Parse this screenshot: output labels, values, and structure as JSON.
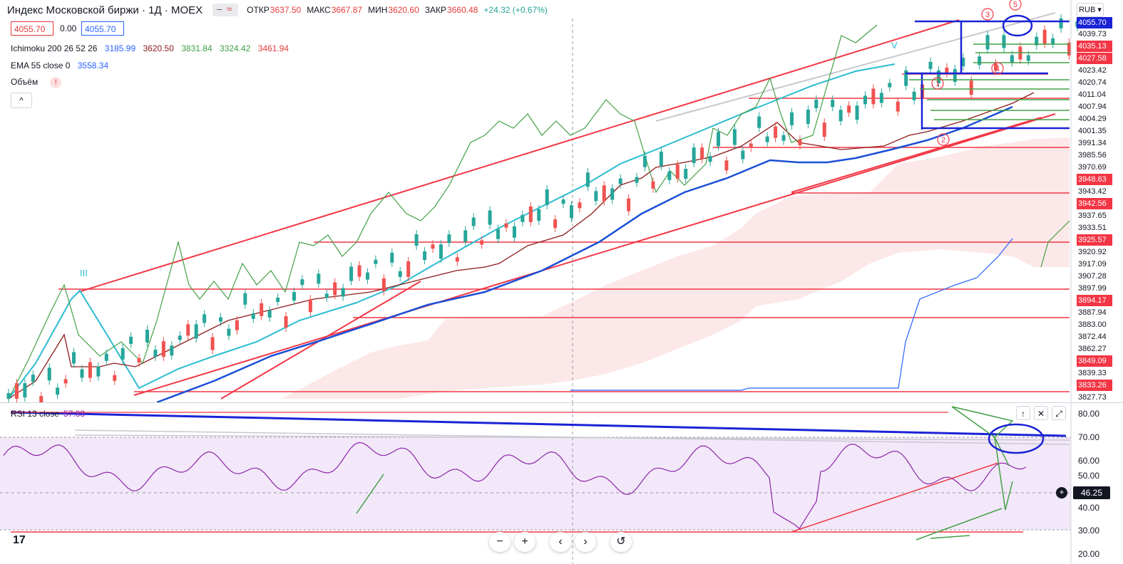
{
  "header": {
    "title": "Индекс Московской биржи · 1Д · MOEX",
    "open_label": "ОТКР",
    "open": "3637.50",
    "high_label": "МАКС",
    "high": "3667.87",
    "low_label": "МИН",
    "low": "3620.60",
    "close_label": "ЗАКР",
    "close": "3660.48",
    "change": "+24.32 (+0.67%)"
  },
  "price_boxes": {
    "bid": "4055.70",
    "spread": "0.00",
    "ask": "4055.70"
  },
  "currency": "RUB",
  "indicators": {
    "ichimoku_label": "Ichimoku 200 26 52 26",
    "ichimoku_values": [
      "3185.99",
      "3620.50",
      "3831.84",
      "3324.42",
      "3461.94"
    ],
    "ema_label": "EMA 55 close 0",
    "ema_value": "3558.34",
    "volume_label": "Объём",
    "collapse": "^"
  },
  "colors": {
    "up": "#26a69a",
    "down": "#ef5350",
    "trendline": "#f23645",
    "blue": "#1a23d6",
    "ema": "#2962ff",
    "kijun": "#8d1a1a",
    "chikou": "#43a047",
    "tenkan": "#2bbcd0",
    "cloud": "#fbdcdc",
    "rsi": "#8e24aa",
    "rsi_band": "#f0e4f8"
  },
  "price_axis": [
    "4055.70",
    "4039.73",
    "4035.13",
    "4027.58",
    "4023.42",
    "4020.74",
    "4011.04",
    "4007.94",
    "4004.29",
    "4001.35",
    "3991.34",
    "3985.56",
    "3970.69",
    "3948.63",
    "3943.42",
    "3942.56",
    "3937.65",
    "3933.51",
    "3925.57",
    "3920.92",
    "3917.09",
    "3907.28",
    "3897.99",
    "3894.17",
    "3887.94",
    "3883.00",
    "3872.44",
    "3862.27",
    "3849.09",
    "3839.33",
    "3833.26",
    "3827.73"
  ],
  "annotations": {
    "wave_labels": [
      "1",
      "2",
      "3",
      "4",
      "5"
    ],
    "roman": "III",
    "mark_v": "V"
  },
  "rsi": {
    "label": "RSI 13 close",
    "value": "57.83",
    "ticks": [
      "80.00",
      "70.00",
      "60.00",
      "50.00",
      "40.00",
      "30.00",
      "20.00"
    ],
    "current": "46.25"
  },
  "toolbar": {
    "minus": "−",
    "plus": "+",
    "left": "‹",
    "right": "›",
    "reset": "↺"
  },
  "rsi_controls": {
    "up": "↑",
    "close": "✕",
    "maximize": "⤢"
  },
  "logo": "17",
  "chart_data": {
    "type": "candlestick",
    "candles": [
      [
        10,
        28
      ],
      [
        14,
        26
      ],
      [
        18,
        34
      ],
      [
        22,
        38
      ],
      [
        26,
        33
      ],
      [
        30,
        42
      ],
      [
        34,
        47
      ],
      [
        38,
        45
      ],
      [
        42,
        50
      ],
      [
        46,
        48
      ],
      [
        50,
        53
      ],
      [
        54,
        58
      ],
      [
        58,
        56
      ],
      [
        62,
        64
      ],
      [
        66,
        68
      ],
      [
        70,
        65
      ],
      [
        74,
        72
      ],
      [
        78,
        78
      ],
      [
        82,
        83
      ],
      [
        86,
        80
      ],
      [
        90,
        85
      ],
      [
        94,
        90
      ],
      [
        98,
        86
      ],
      [
        102,
        88
      ],
      [
        106,
        84
      ],
      [
        110,
        78
      ],
      [
        114,
        72
      ],
      [
        118,
        65
      ],
      [
        122,
        58
      ],
      [
        126,
        50
      ],
      [
        130,
        46
      ],
      [
        134,
        42
      ],
      [
        138,
        38
      ],
      [
        142,
        45
      ],
      [
        146,
        50
      ],
      [
        150,
        48
      ],
      [
        154,
        55
      ],
      [
        158,
        60
      ],
      [
        162,
        58
      ],
      [
        166,
        63
      ],
      [
        170,
        60
      ],
      [
        174,
        66
      ],
      [
        178,
        70
      ],
      [
        182,
        68
      ],
      [
        186,
        74
      ],
      [
        190,
        72
      ],
      [
        194,
        78
      ],
      [
        198,
        76
      ],
      [
        202,
        82
      ],
      [
        206,
        80
      ],
      [
        210,
        86
      ],
      [
        214,
        84
      ],
      [
        218,
        90
      ],
      [
        222,
        88
      ],
      [
        226,
        84
      ],
      [
        230,
        90
      ],
      [
        234,
        95
      ],
      [
        238,
        93
      ],
      [
        242,
        99
      ],
      [
        246,
        97
      ],
      [
        250,
        103
      ],
      [
        254,
        108
      ],
      [
        258,
        104
      ],
      [
        262,
        110
      ],
      [
        266,
        107
      ],
      [
        270,
        113
      ],
      [
        274,
        116
      ],
      [
        278,
        120
      ],
      [
        282,
        117
      ],
      [
        286,
        123
      ],
      [
        290,
        127
      ],
      [
        294,
        124
      ],
      [
        298,
        130
      ],
      [
        302,
        134
      ],
      [
        306,
        131
      ],
      [
        310,
        136
      ],
      [
        314,
        132
      ],
      [
        318,
        127
      ],
      [
        322,
        122
      ],
      [
        326,
        128
      ],
      [
        330,
        133
      ],
      [
        334,
        138
      ],
      [
        338,
        142
      ],
      [
        342,
        139
      ],
      [
        346,
        143
      ],
      [
        350,
        140
      ],
      [
        354,
        145
      ],
      [
        358,
        142
      ],
      [
        362,
        148
      ],
      [
        366,
        152
      ],
      [
        370,
        156
      ],
      [
        374,
        153
      ],
      [
        378,
        158
      ],
      [
        382,
        163
      ],
      [
        386,
        167
      ],
      [
        390,
        163
      ],
      [
        394,
        168
      ],
      [
        398,
        172
      ],
      [
        402,
        169
      ],
      [
        406,
        174
      ],
      [
        410,
        178
      ],
      [
        414,
        182
      ],
      [
        418,
        185
      ],
      [
        422,
        182
      ],
      [
        426,
        178
      ],
      [
        430,
        174
      ],
      [
        434,
        170
      ],
      [
        438,
        175
      ],
      [
        442,
        180
      ],
      [
        446,
        184
      ],
      [
        450,
        188
      ],
      [
        454,
        192
      ],
      [
        458,
        196
      ],
      [
        462,
        200
      ],
      [
        466,
        204
      ],
      [
        470,
        208
      ],
      [
        474,
        204
      ],
      [
        478,
        210
      ],
      [
        482,
        214
      ],
      [
        486,
        210
      ],
      [
        490,
        214
      ],
      [
        494,
        218
      ],
      [
        498,
        222
      ],
      [
        502,
        218
      ],
      [
        506,
        222
      ],
      [
        510,
        226
      ],
      [
        514,
        228
      ],
      [
        518,
        232
      ],
      [
        522,
        235
      ],
      [
        526,
        238
      ],
      [
        530,
        240
      ],
      [
        534,
        244
      ]
    ],
    "ichimoku_values": [
      3185.99,
      3620.5,
      3831.84,
      3324.42,
      3461.94
    ],
    "ema55": 3558.34,
    "last": 4055.7,
    "rsi_last": 57.83,
    "rsi_range": [
      20,
      80
    ]
  }
}
